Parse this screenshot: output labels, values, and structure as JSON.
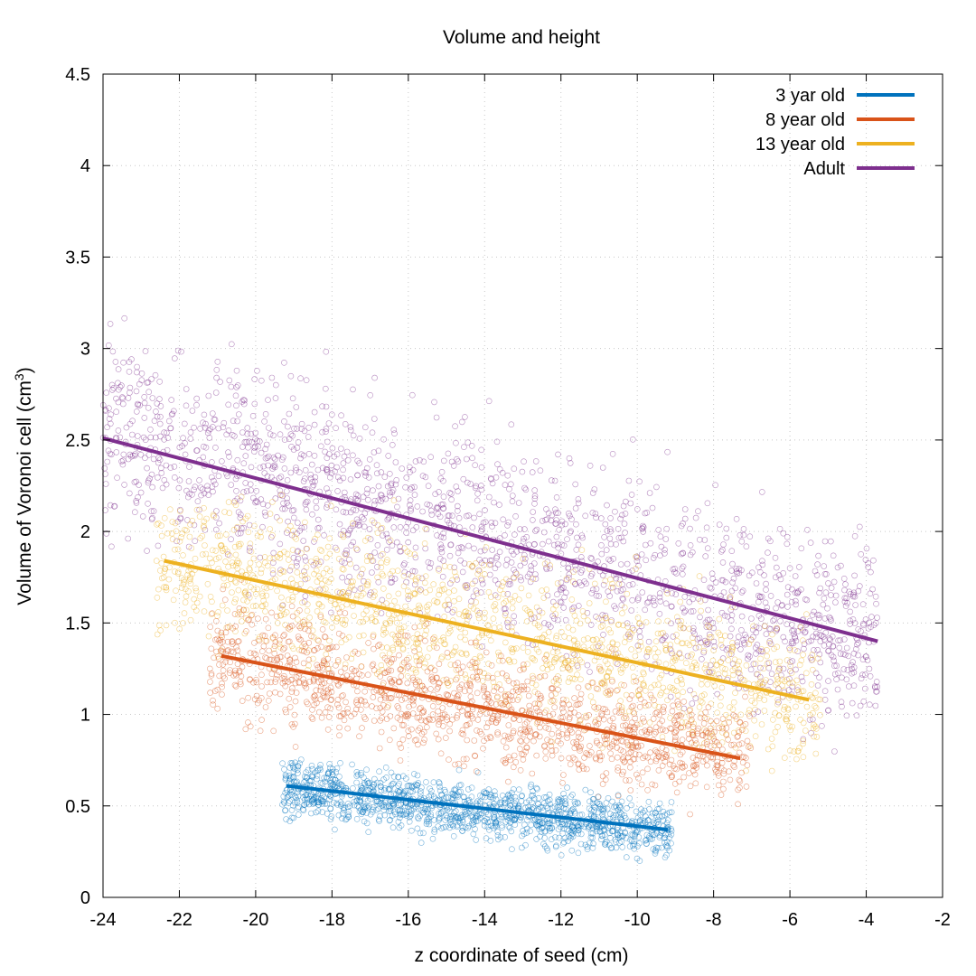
{
  "chart_data": {
    "type": "scatter",
    "title": "Volume and height",
    "xlabel": "z coordinate of seed (cm)",
    "ylabel_main": "Volume of Voronoi cell (cm",
    "ylabel_sup": "3",
    "ylabel_close": ")",
    "xlim": [
      -24,
      -2
    ],
    "ylim": [
      0,
      4.5
    ],
    "x_ticks": [
      -24,
      -22,
      -20,
      -18,
      -16,
      -14,
      -12,
      -10,
      -8,
      -6,
      -4,
      -2
    ],
    "y_ticks": [
      0,
      0.5,
      1,
      1.5,
      2,
      2.5,
      3,
      3.5,
      4,
      4.5
    ],
    "x_tick_labels": [
      "-24",
      "-22",
      "-20",
      "-18",
      "-16",
      "-14",
      "-12",
      "-10",
      "-8",
      "-6",
      "-4",
      "-2"
    ],
    "y_tick_labels": [
      "0",
      "0.5",
      "1",
      "1.5",
      "2",
      "2.5",
      "3",
      "3.5",
      "4",
      "4.5"
    ],
    "grid": true,
    "legend_position": "top-right",
    "series": [
      {
        "name": "Adult",
        "color": "#7e2f8e",
        "fit_line": {
          "x": [
            -24.0,
            -3.7
          ],
          "y": [
            2.51,
            1.4
          ]
        },
        "cloud": {
          "x_range": [
            -24.0,
            -3.7
          ],
          "center_y_at_xmin": 2.55,
          "center_y_at_xmax": 1.4,
          "spread": 0.52,
          "approx_points": 1800
        }
      },
      {
        "name": "13 year old",
        "color": "#edb120",
        "fit_line": {
          "x": [
            -22.4,
            -5.5
          ],
          "y": [
            1.84,
            1.08
          ]
        },
        "cloud": {
          "x_range": [
            -22.6,
            -5.2
          ],
          "center_y_at_xmin": 1.85,
          "center_y_at_xmax": 1.07,
          "spread": 0.4,
          "approx_points": 1400
        }
      },
      {
        "name": "8 year old",
        "color": "#d95319",
        "fit_line": {
          "x": [
            -20.9,
            -7.3
          ],
          "y": [
            1.32,
            0.76
          ]
        },
        "cloud": {
          "x_range": [
            -21.2,
            -7.0
          ],
          "center_y_at_xmin": 1.33,
          "center_y_at_xmax": 0.75,
          "spread": 0.3,
          "approx_points": 1300
        }
      },
      {
        "name": "3 yar old",
        "color": "#0072bd",
        "fit_line": {
          "x": [
            -19.2,
            -9.2
          ],
          "y": [
            0.61,
            0.37
          ]
        },
        "cloud": {
          "x_range": [
            -19.3,
            -9.1
          ],
          "center_y_at_xmin": 0.6,
          "center_y_at_xmax": 0.36,
          "spread": 0.15,
          "approx_points": 1300
        }
      }
    ],
    "legend_order": [
      "3 yar old",
      "8 year old",
      "13 year old",
      "Adult"
    ]
  }
}
